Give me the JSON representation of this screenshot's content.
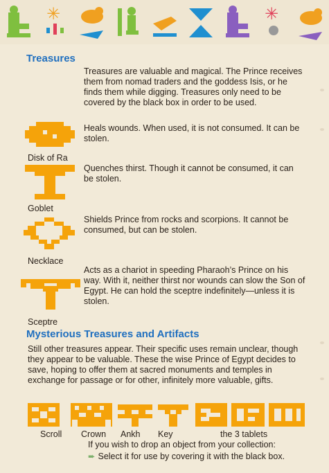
{
  "colors": {
    "heading": "#1f6fbf",
    "icon": "#f5a30a",
    "text": "#2a211a"
  },
  "frieze_glyphs": [
    "person-glyph-icon",
    "star-flower-glyph-icon",
    "bird-glyph-icon",
    "man-glyph-icon",
    "hand-glyph-icon",
    "ibis-glyph-icon",
    "person-glyph-icon",
    "star-flower-glyph-icon",
    "bird-glyph-icon"
  ],
  "treasures": {
    "heading": "Treasures",
    "intro": "Treasures are valuable and magical. The Prince receives them from nomad traders and the goddess Isis, or he finds them while digging. Treasures only need to be covered by the black box in order to be used.",
    "items": [
      {
        "name": "Disk of Ra",
        "icon": "disk-of-ra-icon",
        "desc": "Heals wounds. When used, it is not consumed. It can be stolen."
      },
      {
        "name": "Goblet",
        "icon": "goblet-icon",
        "desc": "Quenches thirst. Though it cannot be consumed, it can be stolen."
      },
      {
        "name": "Necklace",
        "icon": "necklace-icon",
        "desc": "Shields Prince from rocks and scorpions. It cannot be consumed, but can be stolen."
      },
      {
        "name": "Sceptre",
        "icon": "sceptre-icon",
        "desc": "Acts as a chariot in speeding Pharaoh’s Prince on his way. With it, neither thirst nor wounds can slow the Son of Egypt. He can hold the sceptre indefinitely—unless it is stolen."
      }
    ]
  },
  "mysterious": {
    "heading": "Mysterious Treasures and Artifacts",
    "text": "Still other treasures appear. Their specific uses remain unclear, though they appear to be valuable. These the wise Prince of Egypt decides to save, hoping to offer them at sacred monuments and temples in exchange for passage or for other, infinitely more valuable, gifts.",
    "artifacts": [
      {
        "label": "Scroll",
        "icon": "scroll-icon"
      },
      {
        "label": "Crown",
        "icon": "crown-icon"
      },
      {
        "label": "Ankh",
        "icon": "ankh-icon"
      },
      {
        "label": "Key",
        "icon": "key-icon"
      },
      {
        "label": "the 3 tablets",
        "icon": "tablets-icon"
      }
    ],
    "drop_line1": "If you wish to drop an object from your collection:",
    "drop_line2": "Select it for use by covering it with the black box."
  }
}
